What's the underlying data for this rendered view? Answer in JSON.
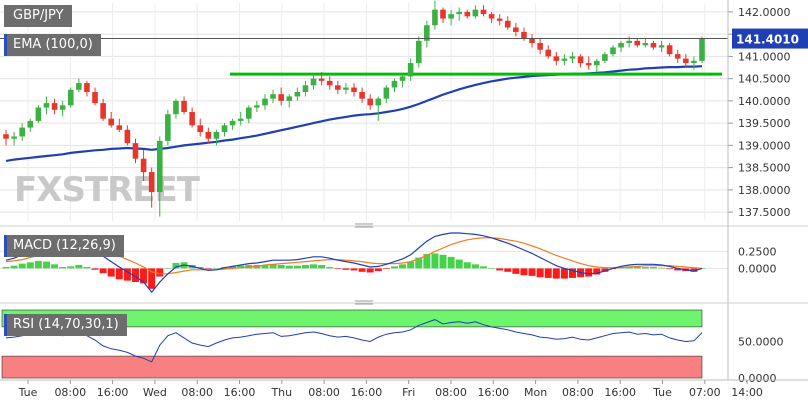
{
  "chart_data": {
    "type": "candlestick",
    "symbol": "GBP/JPY",
    "watermark": "FXSTREET",
    "last_price": "141.4010",
    "price_axis": {
      "ylim": [
        137.3,
        142.2
      ],
      "ticks": [
        "137.5000",
        "138.0000",
        "138.5000",
        "139.0000",
        "139.5000",
        "140.0000",
        "140.5000",
        "141.0000",
        "141.5000",
        "142.0000"
      ]
    },
    "time_axis": {
      "labels": [
        "Tue",
        "08:00",
        "16:00",
        "Wed",
        "08:00",
        "16:00",
        "Thu",
        "08:00",
        "16:00",
        "Fri",
        "08:00",
        "16:00",
        "Mon",
        "08:00",
        "16:00",
        "Tue",
        "07:00",
        "14:00"
      ]
    },
    "candles": [
      [
        139.25,
        139.35,
        139.0,
        139.15
      ],
      [
        139.15,
        139.3,
        139.0,
        139.2
      ],
      [
        139.2,
        139.5,
        139.1,
        139.4
      ],
      [
        139.4,
        139.6,
        139.3,
        139.55
      ],
      [
        139.55,
        139.9,
        139.5,
        139.85
      ],
      [
        139.85,
        140.1,
        139.7,
        139.95
      ],
      [
        139.95,
        140.05,
        139.7,
        139.8
      ],
      [
        139.8,
        140.0,
        139.65,
        139.9
      ],
      [
        139.9,
        140.3,
        139.85,
        140.25
      ],
      [
        140.25,
        140.5,
        140.2,
        140.4
      ],
      [
        140.4,
        140.45,
        140.1,
        140.2
      ],
      [
        140.2,
        140.3,
        139.9,
        139.95
      ],
      [
        139.95,
        140.05,
        139.55,
        139.6
      ],
      [
        139.6,
        139.75,
        139.4,
        139.45
      ],
      [
        139.45,
        139.6,
        139.3,
        139.35
      ],
      [
        139.35,
        139.45,
        139.0,
        139.05
      ],
      [
        139.05,
        139.15,
        138.6,
        138.7
      ],
      [
        138.7,
        138.9,
        138.2,
        138.4
      ],
      [
        138.4,
        138.5,
        137.6,
        137.95
      ],
      [
        137.95,
        139.2,
        137.4,
        139.1
      ],
      [
        139.1,
        139.8,
        139.0,
        139.7
      ],
      [
        139.7,
        140.05,
        139.6,
        140.0
      ],
      [
        140.0,
        140.1,
        139.7,
        139.75
      ],
      [
        139.75,
        139.85,
        139.4,
        139.45
      ],
      [
        139.45,
        139.6,
        139.2,
        139.3
      ],
      [
        139.3,
        139.4,
        139.05,
        139.15
      ],
      [
        139.15,
        139.35,
        139.0,
        139.3
      ],
      [
        139.3,
        139.5,
        139.2,
        139.45
      ],
      [
        139.45,
        139.6,
        139.35,
        139.55
      ],
      [
        139.55,
        139.75,
        139.45,
        139.6
      ],
      [
        139.6,
        139.9,
        139.5,
        139.85
      ],
      [
        139.85,
        140.0,
        139.75,
        139.9
      ],
      [
        139.9,
        140.15,
        139.8,
        140.05
      ],
      [
        140.05,
        140.25,
        139.95,
        140.15
      ],
      [
        140.15,
        140.3,
        139.9,
        140.0
      ],
      [
        140.0,
        140.15,
        139.85,
        140.1
      ],
      [
        140.1,
        140.3,
        140.0,
        140.2
      ],
      [
        140.2,
        140.45,
        140.1,
        140.35
      ],
      [
        140.35,
        140.6,
        140.25,
        140.5
      ],
      [
        140.5,
        140.65,
        140.35,
        140.45
      ],
      [
        140.45,
        140.55,
        140.25,
        140.35
      ],
      [
        140.35,
        140.45,
        140.15,
        140.25
      ],
      [
        140.25,
        140.4,
        140.15,
        140.3
      ],
      [
        140.3,
        140.4,
        140.1,
        140.2
      ],
      [
        140.2,
        140.3,
        139.95,
        140.05
      ],
      [
        140.05,
        140.15,
        139.8,
        139.9
      ],
      [
        139.9,
        140.1,
        139.55,
        140.05
      ],
      [
        140.05,
        140.35,
        139.95,
        140.3
      ],
      [
        140.3,
        140.5,
        140.2,
        140.45
      ],
      [
        140.45,
        140.6,
        140.3,
        140.55
      ],
      [
        140.55,
        140.95,
        140.45,
        140.85
      ],
      [
        140.85,
        141.45,
        140.75,
        141.35
      ],
      [
        141.35,
        141.8,
        141.2,
        141.7
      ],
      [
        141.7,
        142.25,
        141.6,
        142.05
      ],
      [
        142.05,
        142.1,
        141.75,
        141.85
      ],
      [
        141.85,
        142.05,
        141.7,
        141.95
      ],
      [
        141.95,
        142.1,
        141.8,
        142.0
      ],
      [
        142.0,
        142.05,
        141.85,
        141.9
      ],
      [
        141.9,
        142.15,
        141.85,
        142.05
      ],
      [
        142.05,
        142.15,
        141.9,
        141.95
      ],
      [
        141.95,
        142.0,
        141.75,
        141.85
      ],
      [
        141.85,
        141.95,
        141.7,
        141.8
      ],
      [
        141.8,
        141.9,
        141.6,
        141.65
      ],
      [
        141.65,
        141.75,
        141.45,
        141.55
      ],
      [
        141.55,
        141.65,
        141.35,
        141.4
      ],
      [
        141.4,
        141.5,
        141.2,
        141.3
      ],
      [
        141.3,
        141.4,
        141.05,
        141.15
      ],
      [
        141.15,
        141.25,
        140.95,
        141.0
      ],
      [
        141.0,
        141.1,
        140.8,
        140.9
      ],
      [
        140.9,
        141.05,
        140.8,
        140.95
      ],
      [
        140.95,
        141.1,
        140.85,
        141.0
      ],
      [
        141.0,
        141.05,
        140.75,
        140.85
      ],
      [
        140.85,
        141.0,
        140.7,
        140.8
      ],
      [
        140.8,
        140.95,
        140.65,
        140.9
      ],
      [
        140.9,
        141.1,
        140.85,
        141.05
      ],
      [
        141.05,
        141.25,
        141.0,
        141.2
      ],
      [
        141.2,
        141.35,
        141.1,
        141.3
      ],
      [
        141.3,
        141.45,
        141.2,
        141.35
      ],
      [
        141.35,
        141.4,
        141.2,
        141.25
      ],
      [
        141.25,
        141.4,
        141.2,
        141.3
      ],
      [
        141.3,
        141.35,
        141.15,
        141.2
      ],
      [
        141.2,
        141.35,
        141.1,
        141.25
      ],
      [
        141.25,
        141.3,
        141.0,
        141.05
      ],
      [
        141.05,
        141.15,
        140.85,
        140.95
      ],
      [
        140.95,
        141.05,
        140.75,
        140.85
      ],
      [
        140.85,
        141.0,
        140.7,
        140.9
      ],
      [
        140.9,
        141.45,
        140.85,
        141.4
      ]
    ],
    "ema": {
      "label": "EMA (100,0)",
      "values": [
        138.65,
        138.68,
        138.7,
        138.72,
        138.74,
        138.76,
        138.78,
        138.8,
        138.83,
        138.85,
        138.87,
        138.89,
        138.9,
        138.92,
        138.93,
        138.94,
        138.93,
        138.92,
        138.9,
        138.92,
        138.94,
        138.97,
        139.0,
        139.02,
        139.04,
        139.06,
        139.08,
        139.11,
        139.13,
        139.16,
        139.19,
        139.22,
        139.26,
        139.3,
        139.34,
        139.38,
        139.42,
        139.46,
        139.5,
        139.54,
        139.58,
        139.61,
        139.64,
        139.67,
        139.69,
        139.7,
        139.72,
        139.75,
        139.78,
        139.82,
        139.87,
        139.93,
        140.0,
        140.07,
        140.14,
        140.2,
        140.26,
        140.31,
        140.36,
        140.4,
        140.44,
        140.47,
        140.5,
        140.52,
        140.54,
        140.56,
        140.57,
        140.58,
        140.59,
        140.6,
        140.61,
        140.61,
        140.62,
        140.63,
        140.64,
        140.66,
        140.68,
        140.7,
        140.71,
        140.73,
        140.74,
        140.75,
        140.76,
        140.76,
        140.77,
        140.77,
        140.78
      ]
    },
    "support_level": 140.6,
    "macd": {
      "label": "MACD (12,26,9)",
      "ylim": [
        -0.45,
        0.55
      ],
      "ticks": [
        "0.2500",
        "0.0000"
      ],
      "macd_line": [
        0.12,
        0.15,
        0.2,
        0.25,
        0.3,
        0.32,
        0.3,
        0.27,
        0.29,
        0.32,
        0.3,
        0.25,
        0.18,
        0.1,
        0.02,
        -0.05,
        -0.12,
        -0.2,
        -0.35,
        -0.2,
        -0.08,
        0.02,
        0.05,
        0.03,
        0.0,
        -0.03,
        -0.02,
        0.01,
        0.03,
        0.05,
        0.07,
        0.08,
        0.1,
        0.12,
        0.12,
        0.12,
        0.13,
        0.15,
        0.17,
        0.17,
        0.15,
        0.12,
        0.1,
        0.08,
        0.05,
        0.02,
        0.03,
        0.06,
        0.1,
        0.14,
        0.2,
        0.3,
        0.4,
        0.47,
        0.5,
        0.52,
        0.52,
        0.51,
        0.5,
        0.48,
        0.45,
        0.41,
        0.37,
        0.32,
        0.27,
        0.22,
        0.16,
        0.1,
        0.04,
        0.0,
        -0.03,
        -0.06,
        -0.08,
        -0.07,
        -0.04,
        0.0,
        0.03,
        0.05,
        0.06,
        0.06,
        0.06,
        0.05,
        0.03,
        0.0,
        -0.02,
        -0.04,
        0.0
      ],
      "signal_line": [
        0.1,
        0.11,
        0.13,
        0.16,
        0.19,
        0.22,
        0.24,
        0.25,
        0.26,
        0.27,
        0.28,
        0.27,
        0.25,
        0.22,
        0.18,
        0.13,
        0.08,
        0.02,
        -0.05,
        -0.08,
        -0.08,
        -0.06,
        -0.04,
        -0.02,
        -0.02,
        -0.02,
        -0.02,
        -0.01,
        0.0,
        0.01,
        0.02,
        0.03,
        0.05,
        0.06,
        0.07,
        0.08,
        0.09,
        0.1,
        0.11,
        0.12,
        0.13,
        0.13,
        0.12,
        0.11,
        0.1,
        0.08,
        0.07,
        0.07,
        0.07,
        0.08,
        0.1,
        0.14,
        0.19,
        0.25,
        0.3,
        0.35,
        0.39,
        0.42,
        0.44,
        0.45,
        0.45,
        0.44,
        0.42,
        0.4,
        0.37,
        0.33,
        0.29,
        0.24,
        0.19,
        0.15,
        0.11,
        0.07,
        0.04,
        0.02,
        0.01,
        0.01,
        0.01,
        0.02,
        0.03,
        0.04,
        0.04,
        0.04,
        0.04,
        0.03,
        0.02,
        0.01,
        0.0
      ]
    },
    "rsi": {
      "label": "RSI (14,70,30,1)",
      "ylim": [
        0,
        100
      ],
      "ticks": [
        "50.0000",
        "0.0000"
      ],
      "overbought": 70,
      "oversold": 30,
      "values": [
        55,
        56,
        58,
        60,
        63,
        66,
        60,
        58,
        63,
        65,
        58,
        52,
        44,
        40,
        38,
        35,
        30,
        27,
        22,
        45,
        58,
        62,
        55,
        48,
        45,
        43,
        48,
        52,
        55,
        56,
        58,
        60,
        61,
        62,
        57,
        58,
        60,
        62,
        63,
        61,
        58,
        56,
        57,
        55,
        52,
        50,
        56,
        60,
        62,
        63,
        66,
        72,
        76,
        80,
        74,
        76,
        77,
        75,
        77,
        73,
        70,
        68,
        66,
        63,
        61,
        59,
        56,
        55,
        53,
        54,
        56,
        53,
        52,
        55,
        58,
        61,
        62,
        63,
        60,
        61,
        59,
        60,
        55,
        52,
        50,
        51,
        62
      ]
    },
    "colors": {
      "bull": "#3cb043",
      "bear": "#e8362c",
      "ema": "#1f3fb5",
      "support": "#00c000",
      "macd_line": "#1f3fb5",
      "signal_line": "#f07c1e",
      "hist_pos": "#46d24a",
      "hist_neg": "#ff1a1a",
      "rsi_line": "#1f3fb5",
      "rsi_overbought_band": "#6ef56e",
      "rsi_oversold_band": "#f98080",
      "last_price_bg": "#1f3fb5"
    }
  }
}
